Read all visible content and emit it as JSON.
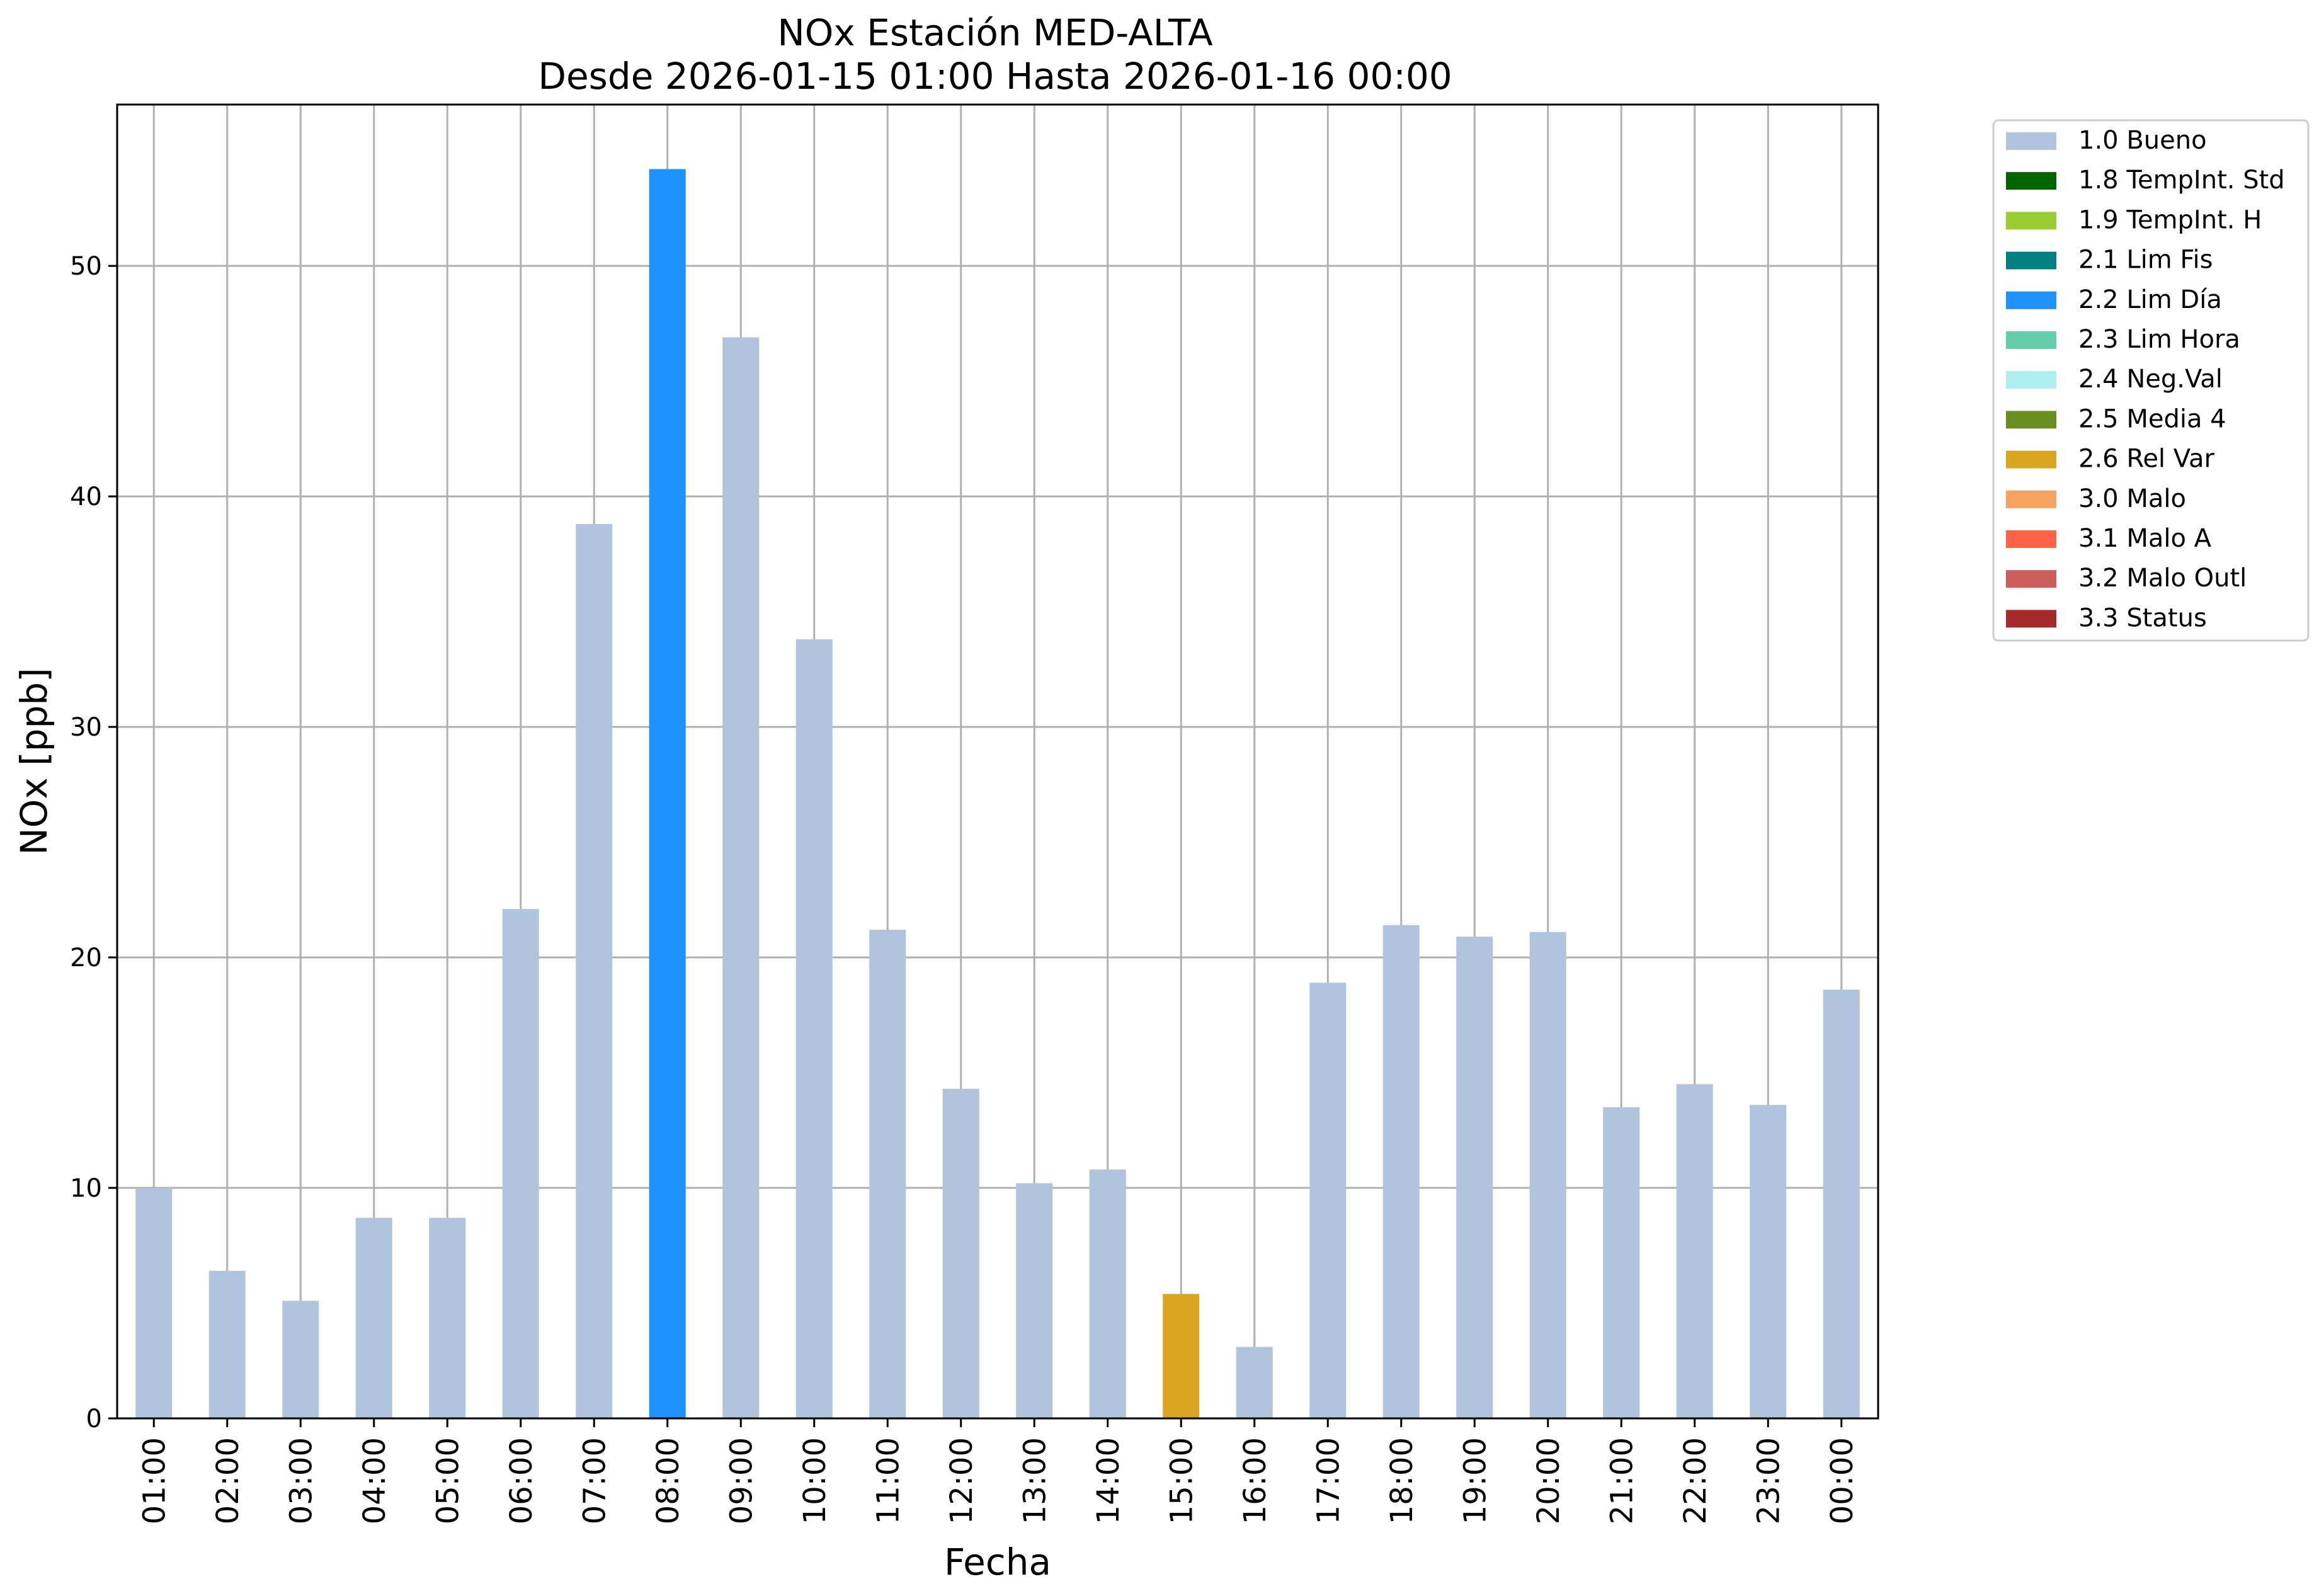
{
  "chart_data": {
    "type": "bar",
    "title": "NOx Estación MED-ALTA",
    "subtitle": "Desde 2026-01-15 01:00 Hasta 2026-01-16 00:00",
    "xlabel": "Fecha",
    "ylabel": "NOx [ppb]",
    "ylim": [
      0,
      57
    ],
    "yticks": [
      0,
      10,
      20,
      30,
      40,
      50
    ],
    "grid": true,
    "legend_position": "outside top-right",
    "categories": [
      "01:00",
      "02:00",
      "03:00",
      "04:00",
      "05:00",
      "06:00",
      "07:00",
      "08:00",
      "09:00",
      "10:00",
      "11:00",
      "12:00",
      "13:00",
      "14:00",
      "15:00",
      "16:00",
      "17:00",
      "18:00",
      "19:00",
      "20:00",
      "21:00",
      "22:00",
      "23:00",
      "00:00"
    ],
    "values": [
      10.0,
      6.4,
      5.1,
      8.7,
      8.7,
      22.1,
      38.8,
      54.2,
      46.9,
      33.8,
      21.2,
      14.3,
      10.2,
      10.8,
      5.4,
      3.1,
      18.9,
      21.4,
      20.9,
      21.1,
      13.5,
      14.5,
      13.6,
      18.6
    ],
    "flags": [
      "1.0 Bueno",
      "1.0 Bueno",
      "1.0 Bueno",
      "1.0 Bueno",
      "1.0 Bueno",
      "1.0 Bueno",
      "1.0 Bueno",
      "2.2 Lim Día",
      "1.0 Bueno",
      "1.0 Bueno",
      "1.0 Bueno",
      "1.0 Bueno",
      "1.0 Bueno",
      "1.0 Bueno",
      "2.6 Rel Var",
      "1.0 Bueno",
      "1.0 Bueno",
      "1.0 Bueno",
      "1.0 Bueno",
      "1.0 Bueno",
      "1.0 Bueno",
      "1.0 Bueno",
      "1.0 Bueno",
      "1.0 Bueno"
    ],
    "legend": [
      {
        "label": "1.0 Bueno",
        "color": "#b0c4de"
      },
      {
        "label": "1.8 TempInt. Std",
        "color": "#006400"
      },
      {
        "label": "1.9 TempInt. H",
        "color": "#9acd32"
      },
      {
        "label": "2.1 Lim Fis",
        "color": "#008080"
      },
      {
        "label": "2.2 Lim Día",
        "color": "#1e90ff"
      },
      {
        "label": "2.3 Lim Hora",
        "color": "#66cdaa"
      },
      {
        "label": "2.4 Neg.Val",
        "color": "#afeeee"
      },
      {
        "label": "2.5 Media 4",
        "color": "#6b8e23"
      },
      {
        "label": "2.6 Rel Var",
        "color": "#daa520"
      },
      {
        "label": "3.0 Malo",
        "color": "#f4a460"
      },
      {
        "label": "3.1 Malo A",
        "color": "#ff6347"
      },
      {
        "label": "3.2 Malo Outl",
        "color": "#cd5c5c"
      },
      {
        "label": "3.3 Status",
        "color": "#a52a2a"
      }
    ]
  }
}
